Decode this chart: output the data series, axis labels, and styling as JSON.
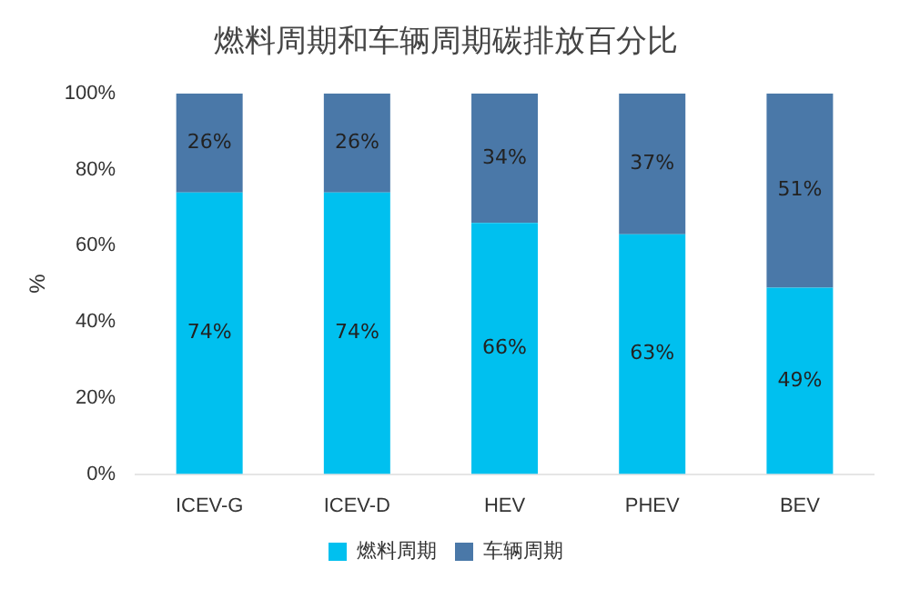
{
  "chart_data": {
    "type": "bar",
    "title": "燃料周期和车辆周期碳排放百分比",
    "ylabel": "%",
    "categories": [
      "ICEV-G",
      "ICEV-D",
      "HEV",
      "PHEV",
      "BEV"
    ],
    "stacked": true,
    "series": [
      {
        "name": "燃料周期",
        "color": "#00c0ef",
        "values": [
          74,
          74,
          66,
          63,
          49
        ],
        "value_labels": [
          "74%",
          "74%",
          "66%",
          "63%",
          "49%"
        ]
      },
      {
        "name": "车辆周期",
        "color": "#4a78a8",
        "values": [
          26,
          26,
          34,
          37,
          51
        ],
        "value_labels": [
          "26%",
          "26%",
          "34%",
          "37%",
          "51%"
        ]
      }
    ],
    "ylim": [
      0,
      100
    ],
    "yticks": [
      {
        "value": 0,
        "label": "0%"
      },
      {
        "value": 20,
        "label": "20%"
      },
      {
        "value": 40,
        "label": "40%"
      },
      {
        "value": 60,
        "label": "60%"
      },
      {
        "value": 80,
        "label": "80%"
      },
      {
        "value": 100,
        "label": "100%"
      }
    ],
    "grid": false,
    "legend": "bottom"
  }
}
